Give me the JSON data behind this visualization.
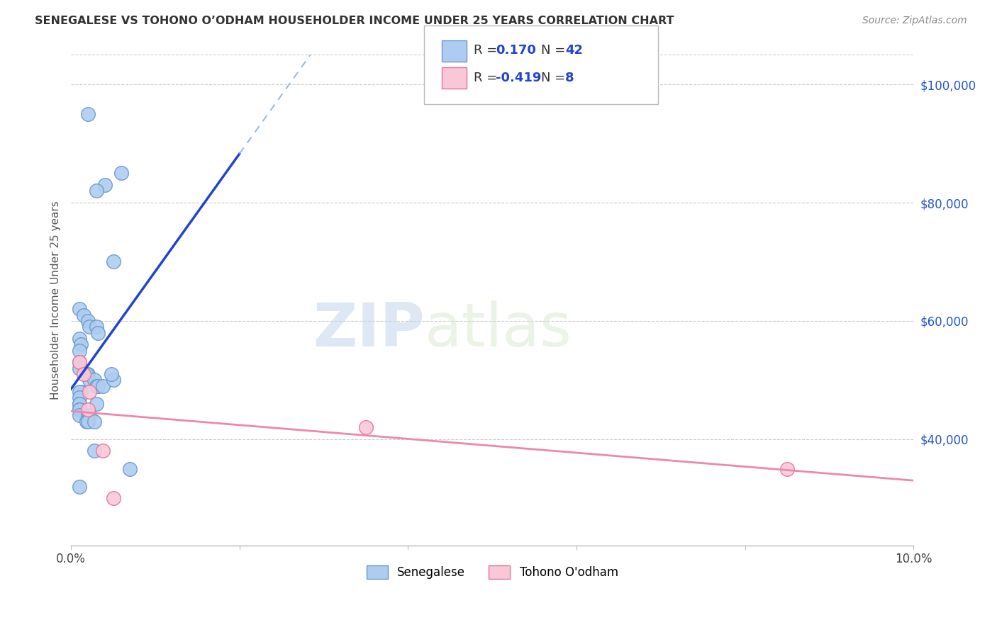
{
  "title": "SENEGALESE VS TOHONO O’ODHAM HOUSEHOLDER INCOME UNDER 25 YEARS CORRELATION CHART",
  "source": "Source: ZipAtlas.com",
  "ylabel": "Householder Income Under 25 years",
  "background_color": "#ffffff",
  "senegalese_R": 0.17,
  "senegalese_N": 42,
  "tohono_R": -0.419,
  "tohono_N": 8,
  "senegalese_color": "#aeccf0",
  "senegalese_edge": "#6699cc",
  "tohono_color": "#f9c8d8",
  "tohono_edge": "#e87090",
  "trendline_blue_solid": "#2244cc",
  "trendline_blue_dashed": "#99bbdd",
  "trendline_pink": "#ee88aa",
  "xlim": [
    0.0,
    10.0
  ],
  "ylim": [
    22000,
    105000
  ],
  "yticks": [
    40000,
    60000,
    80000,
    100000
  ],
  "ytick_labels": [
    "$40,000",
    "$60,000",
    "$80,000",
    "$100,000"
  ],
  "xticks": [
    0.0,
    2.0,
    4.0,
    6.0,
    8.0,
    10.0
  ],
  "xtick_labels": [
    "0.0%",
    "",
    "",
    "",
    "",
    "10.0%"
  ],
  "watermark_zip": "ZIP",
  "watermark_atlas": "atlas",
  "senegalese_x": [
    0.2,
    0.4,
    0.3,
    0.6,
    0.5,
    0.1,
    0.15,
    0.2,
    0.22,
    0.3,
    0.32,
    0.1,
    0.12,
    0.1,
    0.1,
    0.1,
    0.2,
    0.18,
    0.22,
    0.28,
    0.3,
    0.32,
    0.38,
    0.12,
    0.1,
    0.1,
    0.1,
    0.1,
    0.1,
    0.1,
    0.1,
    0.2,
    0.22,
    0.18,
    0.2,
    0.28,
    0.3,
    0.5,
    0.48,
    0.28,
    0.7,
    0.1
  ],
  "senegalese_y": [
    95000,
    83000,
    82000,
    85000,
    70000,
    62000,
    61000,
    60000,
    59000,
    59000,
    58000,
    57000,
    56000,
    55000,
    53000,
    52000,
    51000,
    51000,
    50000,
    50000,
    49000,
    49000,
    49000,
    48000,
    48000,
    47000,
    46000,
    46000,
    45000,
    45000,
    44000,
    44000,
    44000,
    43000,
    43000,
    43000,
    46000,
    50000,
    51000,
    38000,
    35000,
    32000
  ],
  "tohono_x": [
    0.1,
    0.15,
    0.22,
    0.2,
    0.38,
    0.5,
    3.5,
    8.5
  ],
  "tohono_y": [
    53000,
    51000,
    48000,
    45000,
    38000,
    30000,
    42000,
    35000
  ]
}
